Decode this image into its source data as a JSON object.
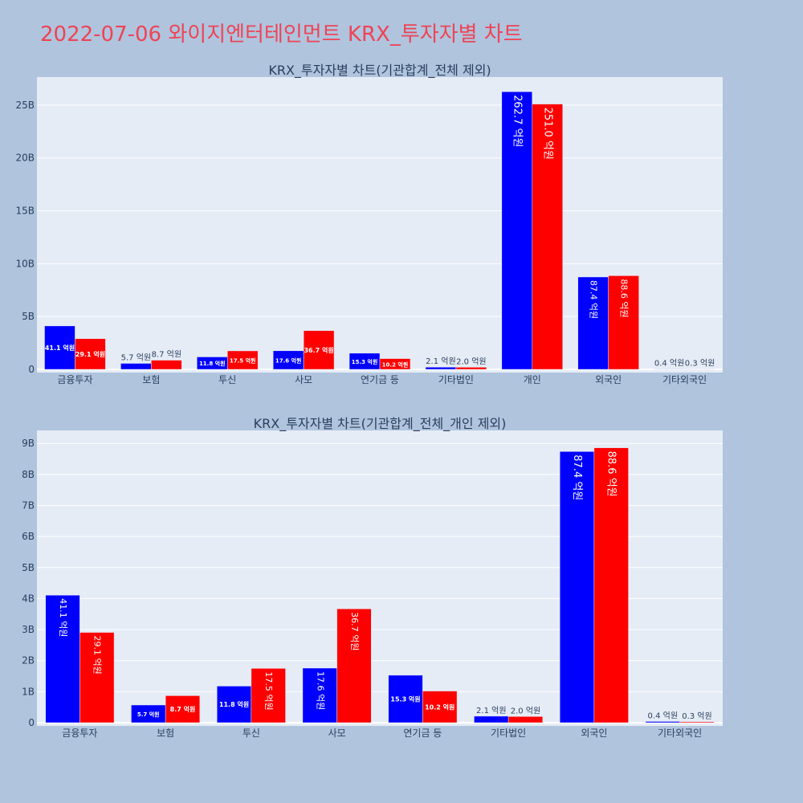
{
  "page": {
    "title": "2022-07-06 와이지엔터테인먼트 KRX_투자자별 차트"
  },
  "colors": {
    "background": "#b0c4de",
    "plot_bg": "#e5ecf6",
    "grid": "#ffffff",
    "text": "#2a3f5f",
    "title": "#ee4455",
    "series": [
      "#0000ff",
      "#ff0000"
    ]
  },
  "chart_data": [
    {
      "type": "bar",
      "title": "KRX_투자자별 차트(기관합계_전체 제외)",
      "categories": [
        "금융투자",
        "보험",
        "투신",
        "사모",
        "연기금 등",
        "기타법인",
        "개인",
        "외국인",
        "기타외국인"
      ],
      "series": [
        {
          "values": [
            4110000000,
            570000000,
            1180000000,
            1760000000,
            1530000000,
            210000000,
            26270000000,
            8740000000,
            40000000
          ],
          "labels": [
            "41.1 억원",
            "5.7 억원",
            "11.8 억원",
            "17.6 억원",
            "15.3 억원",
            "2.1 억원",
            "262.7 억원",
            "87.4 억원",
            "0.4 억원"
          ]
        },
        {
          "values": [
            2910000000,
            870000000,
            1750000000,
            3670000000,
            1020000000,
            200000000,
            25100000000,
            8860000000,
            30000000
          ],
          "labels": [
            "29.1 억원",
            "8.7 억원",
            "17.5 억원",
            "36.7 억원",
            "10.2 억원",
            "2.0 억원",
            "251.0 억원",
            "88.6 억원",
            "0.3 억원"
          ]
        }
      ],
      "y_ticks": [
        0,
        5000000000,
        10000000000,
        15000000000,
        20000000000,
        25000000000
      ],
      "y_tick_labels": [
        "0",
        "5B",
        "10B",
        "15B",
        "20B",
        "25B"
      ],
      "ylim": [
        0,
        27650000000
      ],
      "grid": true
    },
    {
      "type": "bar",
      "title": "KRX_투자자별 차트(기관합계_전체_개인 제외)",
      "categories": [
        "금융투자",
        "보험",
        "투신",
        "사모",
        "연기금 등",
        "기타법인",
        "외국인",
        "기타외국인"
      ],
      "series": [
        {
          "values": [
            4110000000,
            570000000,
            1180000000,
            1760000000,
            1530000000,
            210000000,
            8740000000,
            40000000
          ],
          "labels": [
            "41.1 억원",
            "5.7 억원",
            "11.8 억원",
            "17.6 억원",
            "15.3 억원",
            "2.1 억원",
            "87.4 억원",
            "0.4 억원"
          ]
        },
        {
          "values": [
            2910000000,
            870000000,
            1750000000,
            3670000000,
            1020000000,
            200000000,
            8860000000,
            30000000
          ],
          "labels": [
            "29.1 억원",
            "8.7 억원",
            "17.5 억원",
            "36.7 억원",
            "10.2 억원",
            "2.0 억원",
            "88.6 억원",
            "0.3 억원"
          ]
        }
      ],
      "y_ticks": [
        0,
        1000000000,
        2000000000,
        3000000000,
        4000000000,
        5000000000,
        6000000000,
        7000000000,
        8000000000,
        9000000000
      ],
      "y_tick_labels": [
        "0",
        "1B",
        "2B",
        "3B",
        "4B",
        "5B",
        "6B",
        "7B",
        "8B",
        "9B"
      ],
      "ylim": [
        0,
        9420000000
      ],
      "grid": true
    }
  ]
}
